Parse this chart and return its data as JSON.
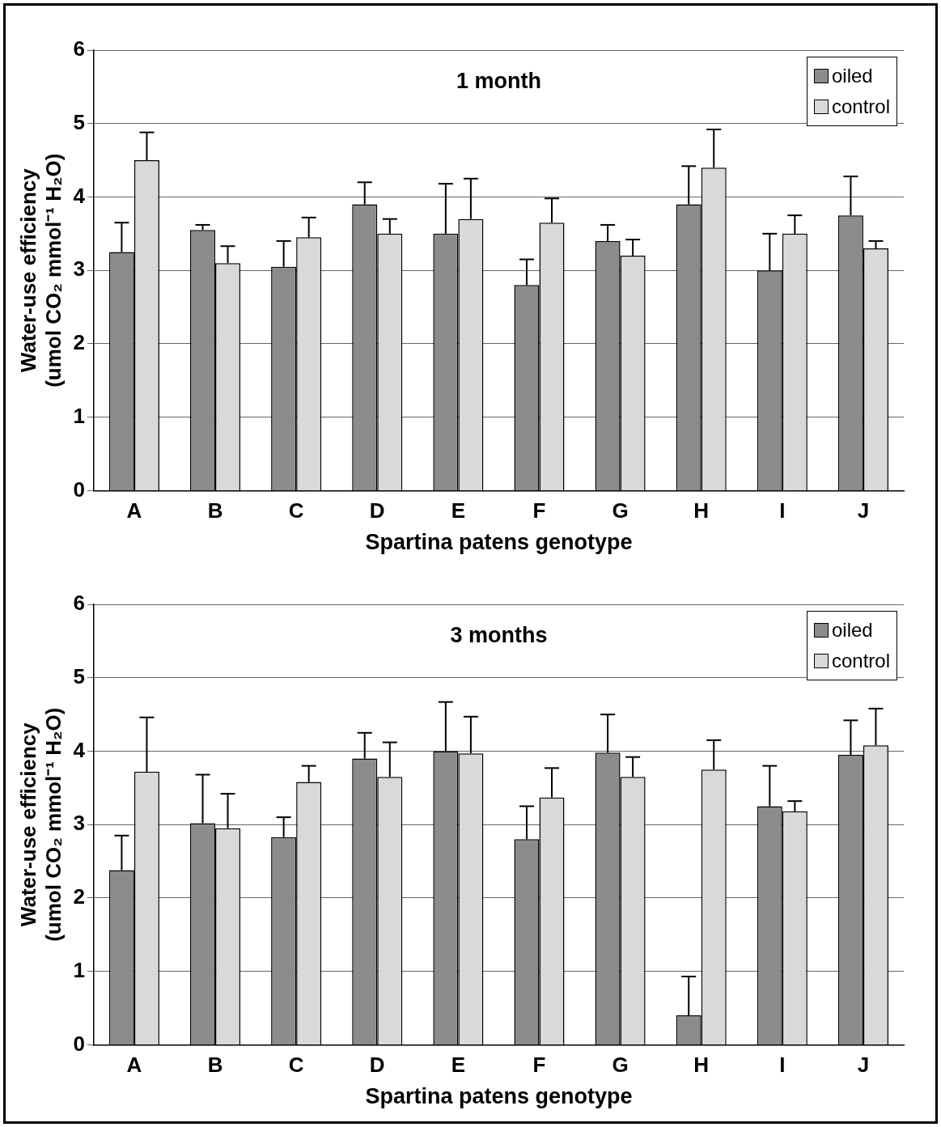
{
  "chart_data": [
    {
      "type": "bar",
      "title": "1 month",
      "xlabel": "Spartina patens genotype",
      "ylabel": "Water-use efficiency\n(umol CO₂ mmol⁻¹ H₂O)",
      "categories": [
        "A",
        "B",
        "C",
        "D",
        "E",
        "F",
        "G",
        "H",
        "I",
        "J"
      ],
      "ylim": [
        0,
        6
      ],
      "yticks": [
        0,
        1,
        2,
        3,
        4,
        5,
        6
      ],
      "grid": "y",
      "legend": "top right",
      "series": [
        {
          "name": "oiled",
          "color": "#8c8c8c",
          "values": [
            3.25,
            3.55,
            3.05,
            3.9,
            3.5,
            2.8,
            3.4,
            3.9,
            3.0,
            3.75
          ],
          "errors": [
            [
              3.25,
              3.65
            ],
            [
              3.55,
              3.62
            ],
            [
              3.05,
              3.4
            ],
            [
              3.9,
              4.2
            ],
            [
              3.5,
              4.18
            ],
            [
              2.8,
              3.15
            ],
            [
              3.4,
              3.62
            ],
            [
              3.9,
              4.42
            ],
            [
              3.0,
              3.5
            ],
            [
              3.75,
              4.28
            ]
          ]
        },
        {
          "name": "control",
          "color": "#d9d9d9",
          "values": [
            4.5,
            3.1,
            3.45,
            3.5,
            3.7,
            3.65,
            3.2,
            4.4,
            3.5,
            3.3
          ],
          "errors": [
            [
              4.5,
              4.88
            ],
            [
              3.1,
              3.33
            ],
            [
              3.45,
              3.72
            ],
            [
              3.5,
              3.7
            ],
            [
              3.7,
              4.25
            ],
            [
              3.65,
              3.98
            ],
            [
              3.2,
              3.42
            ],
            [
              4.4,
              4.92
            ],
            [
              3.5,
              3.75
            ],
            [
              3.3,
              3.4
            ]
          ]
        }
      ]
    },
    {
      "type": "bar",
      "title": "3 months",
      "xlabel": "Spartina patens genotype",
      "ylabel": "Water-use efficiency\n(umol CO₂ mmol⁻¹ H₂O)",
      "categories": [
        "A",
        "B",
        "C",
        "D",
        "E",
        "F",
        "G",
        "H",
        "I",
        "J"
      ],
      "ylim": [
        0,
        6
      ],
      "yticks": [
        0,
        1,
        2,
        3,
        4,
        5,
        6
      ],
      "grid": "y",
      "legend": "top right",
      "series": [
        {
          "name": "oiled",
          "color": "#8c8c8c",
          "values": [
            2.38,
            3.02,
            2.83,
            3.9,
            4.0,
            2.8,
            3.98,
            0.4,
            3.25,
            3.95
          ],
          "errors": [
            [
              2.38,
              2.85
            ],
            [
              3.02,
              3.68
            ],
            [
              2.83,
              3.1
            ],
            [
              3.9,
              4.25
            ],
            [
              4.0,
              4.67
            ],
            [
              2.8,
              3.25
            ],
            [
              3.98,
              4.5
            ],
            [
              0.4,
              0.93
            ],
            [
              3.25,
              3.8
            ],
            [
              3.95,
              4.42
            ]
          ]
        },
        {
          "name": "control",
          "color": "#d9d9d9",
          "values": [
            3.72,
            2.95,
            3.58,
            3.65,
            3.97,
            3.37,
            3.65,
            3.75,
            3.18,
            4.08
          ],
          "errors": [
            [
              3.72,
              4.46
            ],
            [
              2.95,
              3.42
            ],
            [
              3.58,
              3.8
            ],
            [
              3.65,
              4.12
            ],
            [
              3.97,
              4.47
            ],
            [
              3.37,
              3.77
            ],
            [
              3.65,
              3.92
            ],
            [
              3.75,
              4.15
            ],
            [
              3.18,
              3.32
            ],
            [
              4.08,
              4.58
            ]
          ]
        }
      ]
    }
  ]
}
